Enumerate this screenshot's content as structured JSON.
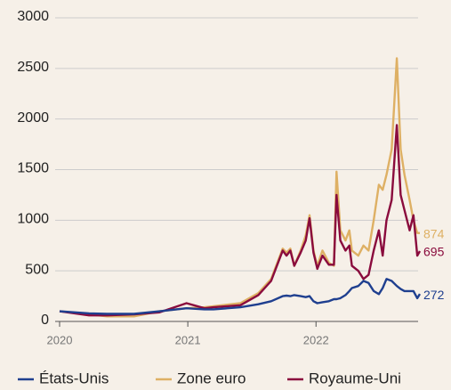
{
  "chart_data": {
    "type": "line",
    "x": [
      2020.0,
      2020.23,
      2020.37,
      2020.58,
      2020.78,
      2020.99,
      2021.13,
      2021.2,
      2021.41,
      2021.55,
      2021.65,
      2021.74,
      2021.77,
      2021.8,
      2021.83,
      2021.88,
      2021.92,
      2021.95,
      2021.98,
      2022.01,
      2022.05,
      2022.1,
      2022.14,
      2022.16,
      2022.19,
      2022.23,
      2022.26,
      2022.28,
      2022.33,
      2022.37,
      2022.41,
      2022.45,
      2022.49,
      2022.52,
      2022.55,
      2022.59,
      2022.63,
      2022.66,
      2022.69,
      2022.73,
      2022.76,
      2022.79,
      2022.81
    ],
    "series": [
      {
        "name": "États-Unis",
        "color": "#1f3f8f",
        "values": [
          100,
          80,
          75,
          75,
          100,
          130,
          120,
          120,
          140,
          170,
          200,
          250,
          255,
          250,
          260,
          250,
          240,
          250,
          200,
          180,
          190,
          200,
          220,
          220,
          230,
          260,
          300,
          330,
          350,
          400,
          380,
          300,
          270,
          330,
          420,
          400,
          350,
          320,
          300,
          300,
          300,
          230,
          272
        ]
      },
      {
        "name": "Zone euro",
        "color": "#deb064",
        "values": [
          100,
          70,
          50,
          50,
          100,
          130,
          140,
          150,
          180,
          280,
          420,
          720,
          680,
          720,
          550,
          700,
          850,
          1050,
          700,
          550,
          700,
          580,
          550,
          1480,
          900,
          800,
          900,
          700,
          650,
          750,
          700,
          1000,
          1350,
          1300,
          1450,
          1700,
          2600,
          1700,
          1450,
          1200,
          1000,
          874,
          874
        ]
      },
      {
        "name": "Royaume-Uni",
        "color": "#8a0b3d",
        "values": [
          100,
          60,
          60,
          70,
          90,
          180,
          130,
          140,
          160,
          260,
          400,
          700,
          650,
          700,
          550,
          680,
          800,
          1020,
          680,
          520,
          650,
          560,
          560,
          1250,
          800,
          700,
          750,
          550,
          500,
          420,
          460,
          700,
          900,
          650,
          1000,
          1200,
          1940,
          1250,
          1100,
          900,
          1050,
          650,
          695
        ]
      }
    ],
    "xlim": [
      2020,
      2022.81
    ],
    "xticks": [
      2020,
      2021,
      2022
    ],
    "ylim": [
      0,
      3000
    ],
    "yticks": [
      0,
      500,
      1000,
      1500,
      2000,
      2500,
      3000
    ],
    "grid": true,
    "legend": "bottom"
  }
}
